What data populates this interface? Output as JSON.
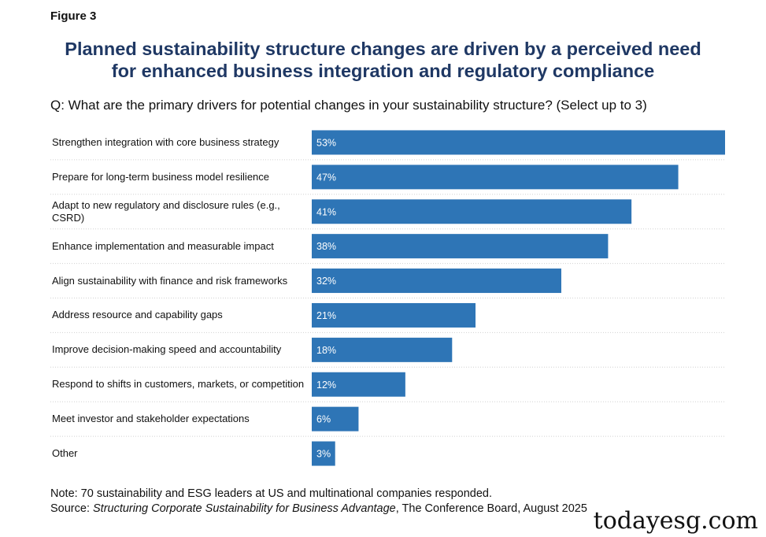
{
  "figure_label": "Figure 3",
  "title_line1": "Planned sustainability structure changes are driven by a perceived need",
  "title_line2": "for enhanced business integration and regulatory compliance",
  "question": "Q: What are the primary drivers for potential changes in your sustainability structure? (Select up to 3)",
  "note": "Note: 70 sustainability and ESG leaders at US and multinational companies responded.",
  "source": {
    "prefix": "Source: ",
    "title": "Structuring Corporate Sustainability for Business Advantage",
    "suffix": ", The Conference Board, August 2025"
  },
  "watermark": "todayesg.com",
  "colors": {
    "bar": "#2e75b6",
    "bar_label": "#ffffff",
    "title": "#1f3864",
    "gridline": "#d0d0d0"
  },
  "chart_data": {
    "type": "bar",
    "orientation": "horizontal",
    "title": "Planned sustainability structure changes are driven by a perceived need for enhanced business integration and regulatory compliance",
    "xlabel": "",
    "ylabel": "",
    "xlim": [
      0,
      53
    ],
    "unit": "%",
    "categories": [
      "Strengthen integration with core business strategy",
      "Prepare for long-term business model resilience",
      "Adapt to new regulatory and disclosure rules (e.g., CSRD)",
      "Enhance implementation and measurable impact",
      "Align sustainability with finance and risk frameworks",
      "Address resource and capability gaps",
      "Improve decision-making speed and accountability",
      "Respond to shifts in customers, markets, or competition",
      "Meet investor and stakeholder expectations",
      "Other"
    ],
    "values": [
      53,
      47,
      41,
      38,
      32,
      21,
      18,
      12,
      6,
      3
    ],
    "labels": [
      "53%",
      "47%",
      "41%",
      "38%",
      "32%",
      "21%",
      "18%",
      "12%",
      "6%",
      "3%"
    ]
  }
}
